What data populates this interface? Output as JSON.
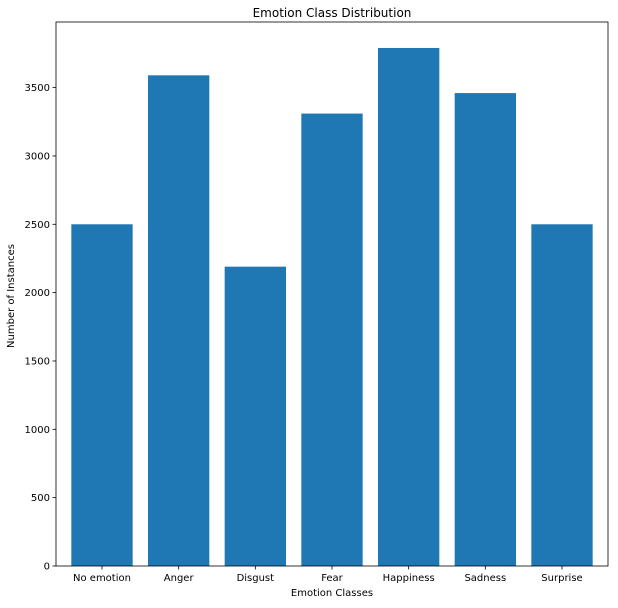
{
  "chart_data": {
    "type": "bar",
    "title": "Emotion Class Distribution",
    "xlabel": "Emotion Classes",
    "ylabel": "Number of Instances",
    "categories": [
      "No emotion",
      "Anger",
      "Disgust",
      "Fear",
      "Happiness",
      "Sadness",
      "Surprise"
    ],
    "values": [
      2500,
      3590,
      2190,
      3310,
      3790,
      3460,
      2500
    ],
    "ylim": [
      0,
      3980
    ],
    "yticks": [
      0,
      500,
      1000,
      1500,
      2000,
      2500,
      3000,
      3500
    ],
    "grid": false,
    "legend": "none",
    "bar_color": "#1f77b4"
  }
}
